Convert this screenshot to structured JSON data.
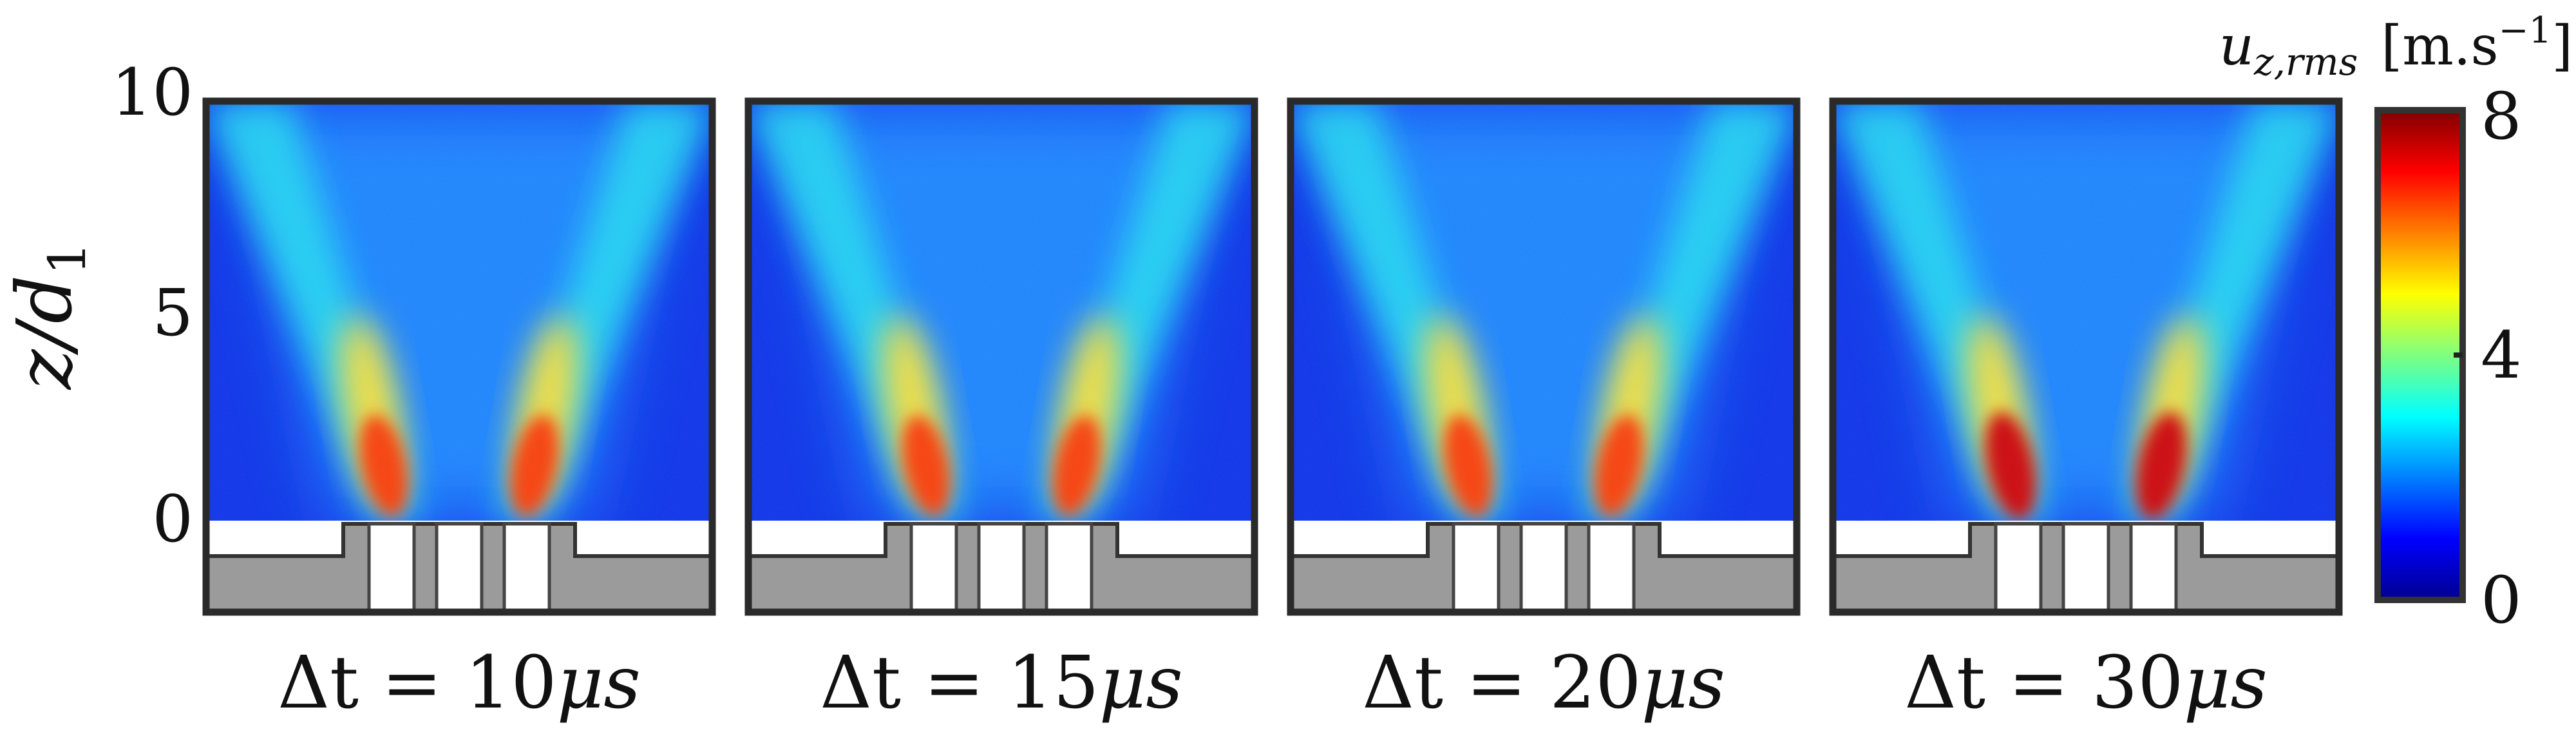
{
  "chart_data": {
    "type": "heatmap",
    "colormap": "jet",
    "ylabel": "z/d1",
    "ylabel_display": {
      "main": "z/d",
      "sub": "1"
    },
    "y_ticks": [
      "10",
      "5",
      "0"
    ],
    "ylim": [
      -2,
      10
    ],
    "panels": [
      {
        "label_prefix": "Δt = ",
        "value": "10",
        "unit": "μs",
        "peak_level": 0.85
      },
      {
        "label_prefix": "Δt = ",
        "value": "15",
        "unit": "μs",
        "peak_level": 0.82
      },
      {
        "label_prefix": "Δt = ",
        "value": "20",
        "unit": "μs",
        "peak_level": 0.86
      },
      {
        "label_prefix": "Δt = ",
        "value": "30",
        "unit": "μs",
        "peak_level": 1.0
      }
    ],
    "colorbar": {
      "symbol": "u",
      "symbol_sub": "z,rms",
      "unit": "[m.s",
      "unit_sup": "−1",
      "unit_close": "]",
      "ticks": [
        "8",
        "4",
        "0"
      ],
      "range": [
        0,
        8
      ],
      "colors": [
        "#00008f",
        "#0000ff",
        "#00ffff",
        "#ffff00",
        "#ff0000",
        "#800000"
      ]
    }
  }
}
